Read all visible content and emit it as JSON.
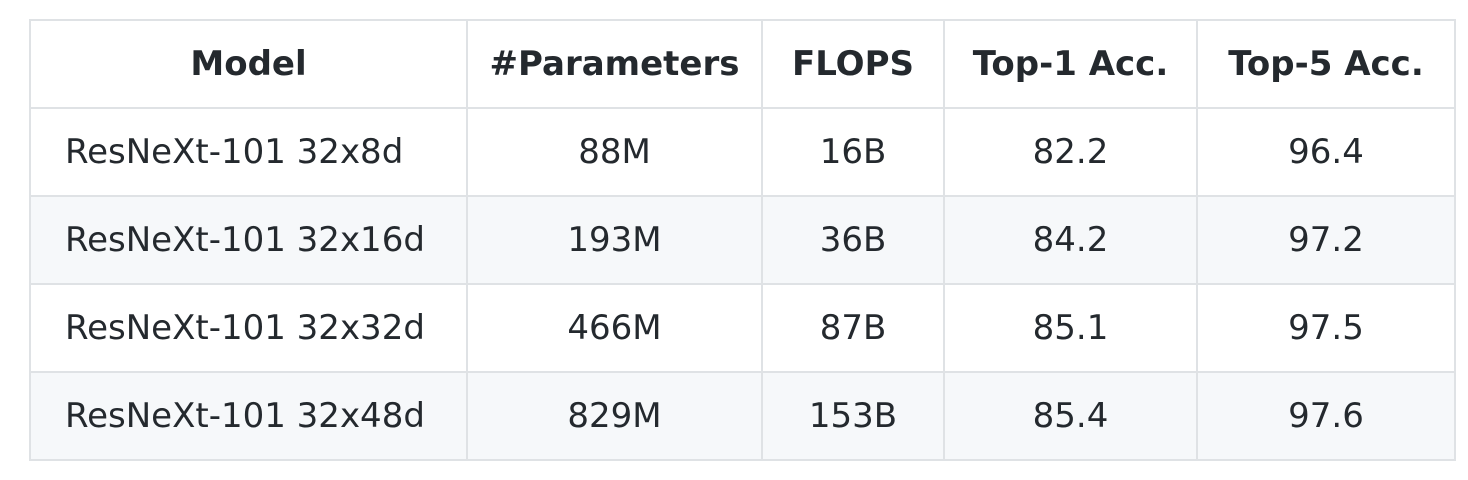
{
  "table": {
    "headers": [
      "Model",
      "#Parameters",
      "FLOPS",
      "Top-1 Acc.",
      "Top-5 Acc."
    ],
    "rows": [
      [
        "ResNeXt-101 32x8d",
        "88M",
        "16B",
        "82.2",
        "96.4"
      ],
      [
        "ResNeXt-101 32x16d",
        "193M",
        "36B",
        "84.2",
        "97.2"
      ],
      [
        "ResNeXt-101 32x32d",
        "466M",
        "87B",
        "85.1",
        "97.5"
      ],
      [
        "ResNeXt-101 32x48d",
        "829M",
        "153B",
        "85.4",
        "97.6"
      ]
    ]
  }
}
